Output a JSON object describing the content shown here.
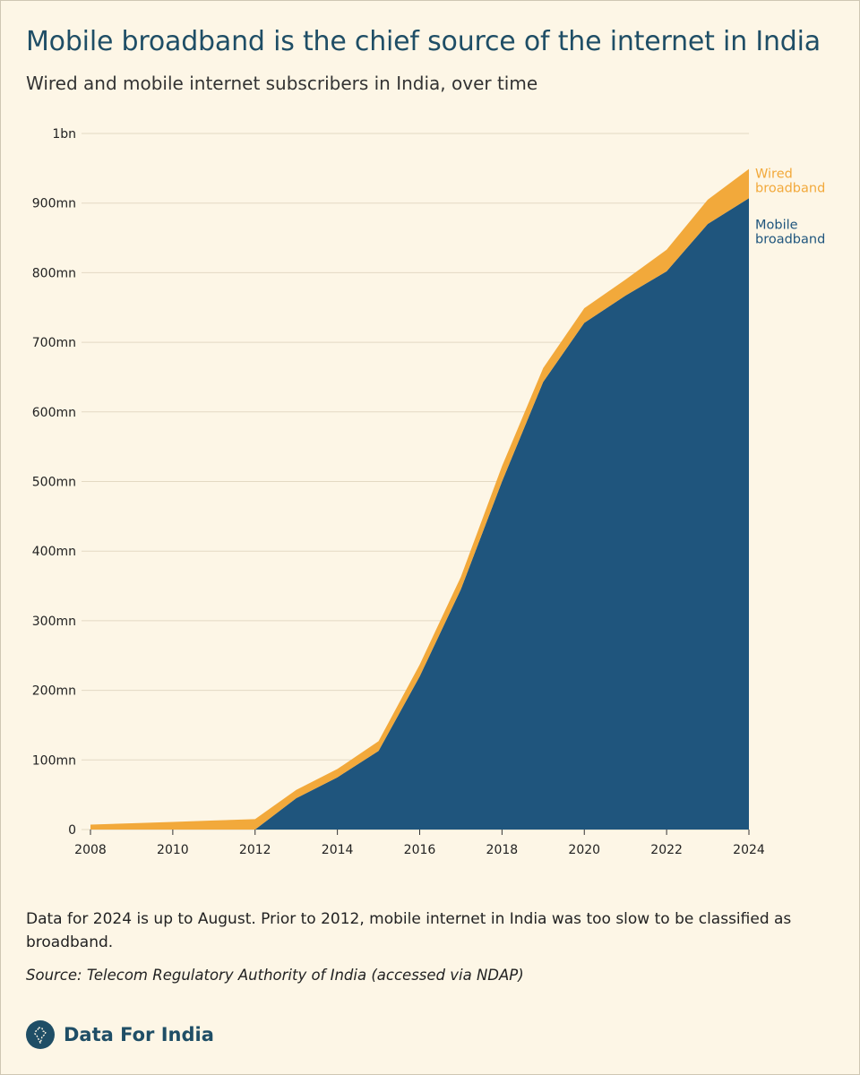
{
  "header": {
    "title": "Mobile broadband is the chief source of the internet in India",
    "subtitle": "Wired and mobile internet subscribers in India, over time"
  },
  "chart_data": {
    "type": "area",
    "stacked": true,
    "x": [
      2008,
      2009,
      2010,
      2011,
      2012,
      2013,
      2014,
      2015,
      2016,
      2017,
      2018,
      2019,
      2020,
      2021,
      2022,
      2023,
      2024
    ],
    "series": [
      {
        "name": "Mobile broadband",
        "color": "#1f557d",
        "values": [
          0,
          0,
          0,
          0,
          0,
          45,
          75,
          113,
          220,
          345,
          500,
          643,
          728,
          767,
          802,
          870,
          907
        ]
      },
      {
        "name": "Wired broadband",
        "color": "#f2a93b",
        "values": [
          7,
          9,
          11,
          13,
          15,
          12,
          12,
          14,
          17,
          18,
          22,
          20,
          21,
          23,
          31,
          35,
          42
        ]
      }
    ],
    "x_ticks": [
      "2008",
      "2010",
      "2012",
      "2014",
      "2016",
      "2018",
      "2020",
      "2022",
      "2024"
    ],
    "y_ticks": [
      {
        "value": 0,
        "label": "0"
      },
      {
        "value": 100,
        "label": "100mn"
      },
      {
        "value": 200,
        "label": "200mn"
      },
      {
        "value": 300,
        "label": "300mn"
      },
      {
        "value": 400,
        "label": "400mn"
      },
      {
        "value": 500,
        "label": "500mn"
      },
      {
        "value": 600,
        "label": "600mn"
      },
      {
        "value": 700,
        "label": "700mn"
      },
      {
        "value": 800,
        "label": "800mn"
      },
      {
        "value": 900,
        "label": "900mn"
      },
      {
        "value": 1000,
        "label": "1bn"
      }
    ],
    "xlim": [
      2008,
      2024
    ],
    "ylim": [
      0,
      1000
    ],
    "grid": "horizontal",
    "legend": "direct labels at right end",
    "labels": {
      "wired": [
        "Wired",
        "broadband"
      ],
      "mobile": [
        "Mobile",
        "broadband"
      ]
    }
  },
  "footer": {
    "note": "Data for 2024 is up to August. Prior to 2012, mobile internet in India was too slow to be classified as broadband.",
    "source": "Source: Telecom Regulatory Authority of India (accessed via NDAP)",
    "brand": "Data For India"
  },
  "colors": {
    "title": "#1f4e66",
    "background": "#fdf6e6",
    "mobile": "#1f557d",
    "wired": "#f2a93b",
    "grid": "#e3d9c3"
  },
  "icons": {
    "brand_logo": "india-map-logo-icon"
  }
}
